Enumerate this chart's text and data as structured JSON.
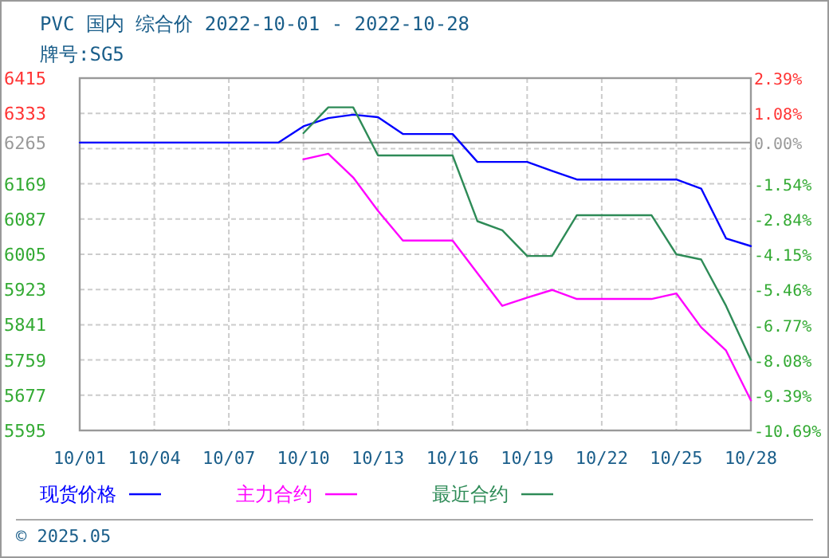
{
  "chart_data": {
    "type": "line",
    "title": "PVC 国内 综合价 2022-10-01 - 2022-10-28",
    "subtitle": "牌号:SG5",
    "annotations": [
      "© 2025.05"
    ],
    "xlim": [
      "2022-10-01",
      "2022-10-28"
    ],
    "xticks": [
      {
        "value": "2022-10-01",
        "label": "10/01"
      },
      {
        "value": "2022-10-04",
        "label": "10/04"
      },
      {
        "value": "2022-10-07",
        "label": "10/07"
      },
      {
        "value": "2022-10-10",
        "label": "10/10"
      },
      {
        "value": "2022-10-13",
        "label": "10/13"
      },
      {
        "value": "2022-10-16",
        "label": "10/16"
      },
      {
        "value": "2022-10-19",
        "label": "10/19"
      },
      {
        "value": "2022-10-22",
        "label": "10/22"
      },
      {
        "value": "2022-10-25",
        "label": "10/25"
      },
      {
        "value": "2022-10-28",
        "label": "10/28"
      }
    ],
    "ylim": [
      5595,
      6415
    ],
    "yticks": [
      6415,
      6333,
      {
        "value": 6251,
        "label": null
      },
      6265,
      6169,
      6087,
      6005,
      5923,
      5841,
      5759,
      5677,
      5595
    ],
    "y2lim": [
      -10.69,
      2.39
    ],
    "y2ticks": [
      {
        "value": 2.39,
        "label": "2.39%"
      },
      {
        "value": 1.08,
        "label": "1.08%"
      },
      {
        "value": 0,
        "label": "0.00%"
      },
      {
        "value": -1.54,
        "label": "-1.54%"
      },
      {
        "value": -2.84,
        "label": "-2.84%"
      },
      {
        "value": -4.15,
        "label": "-4.15%"
      },
      {
        "value": -5.46,
        "label": "-5.46%"
      },
      {
        "value": -6.77,
        "label": "-6.77%"
      },
      {
        "value": -8.08,
        "label": "-8.08%"
      },
      {
        "value": -9.39,
        "label": "-9.39%"
      },
      {
        "value": -10.69,
        "label": "-10.69%"
      }
    ],
    "grid": true,
    "legend": "bottom",
    "ref_lines": [
      {
        "axis": "y",
        "value": 6265,
        "color": "#999999"
      }
    ],
    "series": [
      {
        "name": "现货价格",
        "color": "#0000ff",
        "x": [
          "2022-10-01",
          "2022-10-09",
          "2022-10-10",
          "2022-10-11",
          "2022-10-12",
          "2022-10-13",
          "2022-10-14",
          "2022-10-16",
          "2022-10-17",
          "2022-10-19",
          "2022-10-20",
          "2022-10-21",
          "2022-10-25",
          "2022-10-26",
          "2022-10-27",
          "2022-10-28"
        ],
        "values": [
          6265,
          6265,
          6303,
          6322,
          6330,
          6324,
          6285,
          6285,
          6220,
          6220,
          6199,
          6179,
          6179,
          6158,
          6042,
          6024
        ]
      },
      {
        "name": "主力合约",
        "color": "#ff00ff",
        "x": [
          "2022-10-10",
          "2022-10-11",
          "2022-10-12",
          "2022-10-13",
          "2022-10-14",
          "2022-10-16",
          "2022-10-17",
          "2022-10-18",
          "2022-10-19",
          "2022-10-20",
          "2022-10-21",
          "2022-10-24",
          "2022-10-25",
          "2022-10-26",
          "2022-10-27",
          "2022-10-28"
        ],
        "values": [
          6226,
          6239,
          6184,
          6106,
          6037,
          6037,
          5961,
          5885,
          5904,
          5922,
          5901,
          5901,
          5914,
          5835,
          5781,
          5665
        ]
      },
      {
        "name": "最近合约",
        "color": "#2e8b57",
        "x": [
          "2022-10-10",
          "2022-10-11",
          "2022-10-12",
          "2022-10-13",
          "2022-10-16",
          "2022-10-17",
          "2022-10-18",
          "2022-10-19",
          "2022-10-20",
          "2022-10-21",
          "2022-10-24",
          "2022-10-25",
          "2022-10-26",
          "2022-10-27",
          "2022-10-28"
        ],
        "values": [
          6287,
          6347,
          6347,
          6235,
          6235,
          6082,
          6061,
          6001,
          6001,
          6096,
          6096,
          6005,
          5993,
          5885,
          5759
        ]
      }
    ]
  }
}
